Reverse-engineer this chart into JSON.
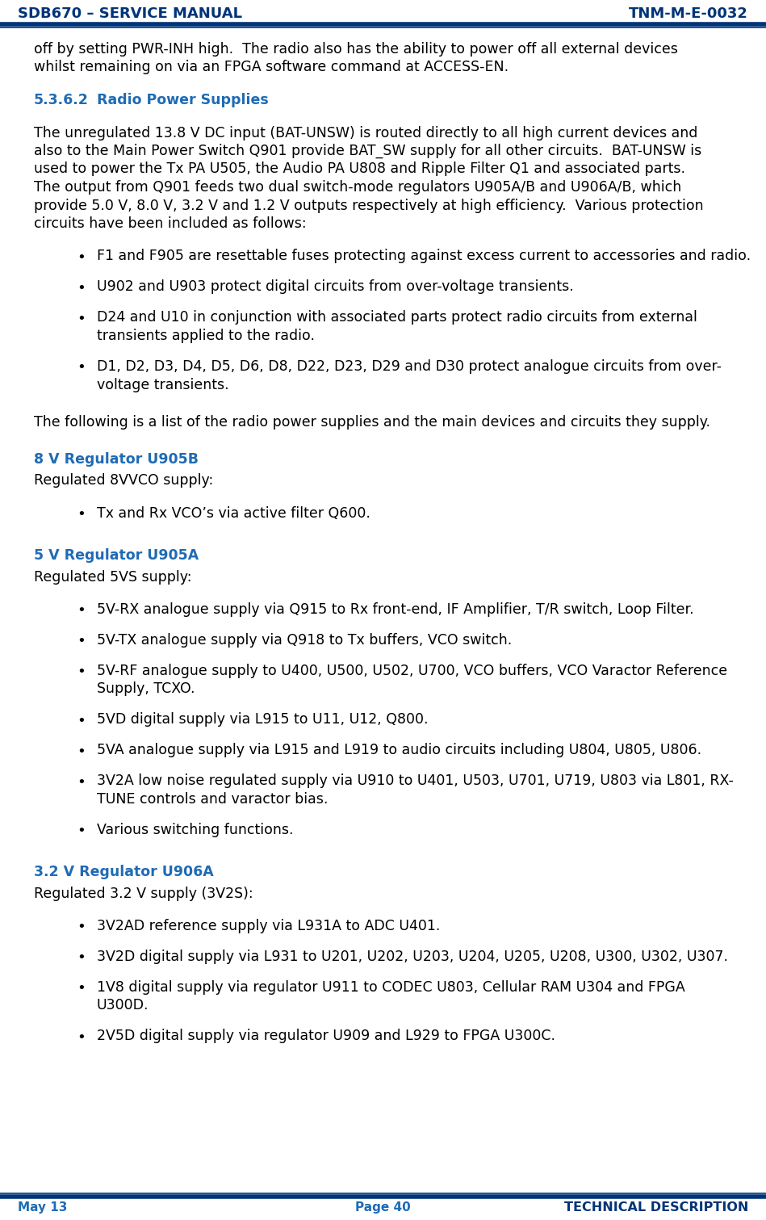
{
  "header_left": "SDB670 – SERVICE MANUAL",
  "header_right": "TNM-M-E-0032",
  "footer_left": "May 13",
  "footer_center": "Page 40",
  "footer_right": "TECHNICAL DESCRIPTION",
  "header_color": "#003478",
  "subheading_color": "#1F6BB5",
  "text_color": "#000000",
  "bg_color": "#ffffff",
  "section_number": "5.3.6.2",
  "section_title": "Radio Power Supplies",
  "intro_lines": [
    "off by setting PWR-INH high.  The radio also has the ability to power off all external devices",
    "whilst remaining on via an FPGA software command at ACCESS-EN."
  ],
  "body_lines": [
    "The unregulated 13.8 V DC input (BAT-UNSW) is routed directly to all high current devices and",
    "also to the Main Power Switch Q901 provide BAT_SW supply for all other circuits.  BAT-UNSW is",
    "used to power the Tx PA U505, the Audio PA U808 and Ripple Filter Q1 and associated parts.",
    "The output from Q901 feeds two dual switch-mode regulators U905A/B and U906A/B, which",
    "provide 5.0 V, 8.0 V, 3.2 V and 1.2 V outputs respectively at high efficiency.  Various protection",
    "circuits have been included as follows:"
  ],
  "bullets_1": [
    [
      "F1 and F905 are resettable fuses protecting against excess current to accessories and radio."
    ],
    [
      "U902 and U903 protect digital circuits from over-voltage transients."
    ],
    [
      "D24 and U10 in conjunction with associated parts protect radio circuits from external",
      "transients applied to the radio."
    ],
    [
      "D1, D2, D3, D4, D5, D6, D8, D22, D23, D29 and D30 protect analogue circuits from over-",
      "voltage transients."
    ]
  ],
  "transition_line": "The following is a list of the radio power supplies and the main devices and circuits they supply.",
  "reg_sections": [
    {
      "heading": "8 V Regulator U905B",
      "subheading": "Regulated 8VVCO supply:",
      "bullets": [
        [
          "Tx and Rx VCO’s via active filter Q600."
        ]
      ]
    },
    {
      "heading": "5 V Regulator U905A",
      "subheading": "Regulated 5VS supply:",
      "bullets": [
        [
          "5V-RX analogue supply via Q915 to Rx front-end, IF Amplifier, T/R switch, Loop Filter."
        ],
        [
          "5V-TX analogue supply via Q918 to Tx buffers, VCO switch."
        ],
        [
          "5V-RF analogue supply to U400, U500, U502, U700, VCO buffers, VCO Varactor Reference",
          "Supply, TCXO."
        ],
        [
          "5VD digital supply via L915 to U11, U12, Q800."
        ],
        [
          "5VA analogue supply via L915 and L919 to audio circuits including U804, U805, U806."
        ],
        [
          "3V2A low noise regulated supply via U910 to U401, U503, U701, U719, U803 via L801, RX-",
          "TUNE controls and varactor bias."
        ],
        [
          "Various switching functions."
        ]
      ]
    },
    {
      "heading": "3.2 V Regulator U906A",
      "subheading": "Regulated 3.2 V supply (3V2S):",
      "bullets": [
        [
          "3V2AD reference supply via L931A to ADC U401."
        ],
        [
          "3V2D digital supply via L931 to U201, U202, U203, U204, U205, U208, U300, U302, U307."
        ],
        [
          "1V8 digital supply via regulator U911 to CODEC U803, Cellular RAM U304 and FPGA",
          "U300D."
        ],
        [
          "2V5D digital supply via regulator U909 and L929 to FPGA U300C."
        ]
      ]
    }
  ]
}
